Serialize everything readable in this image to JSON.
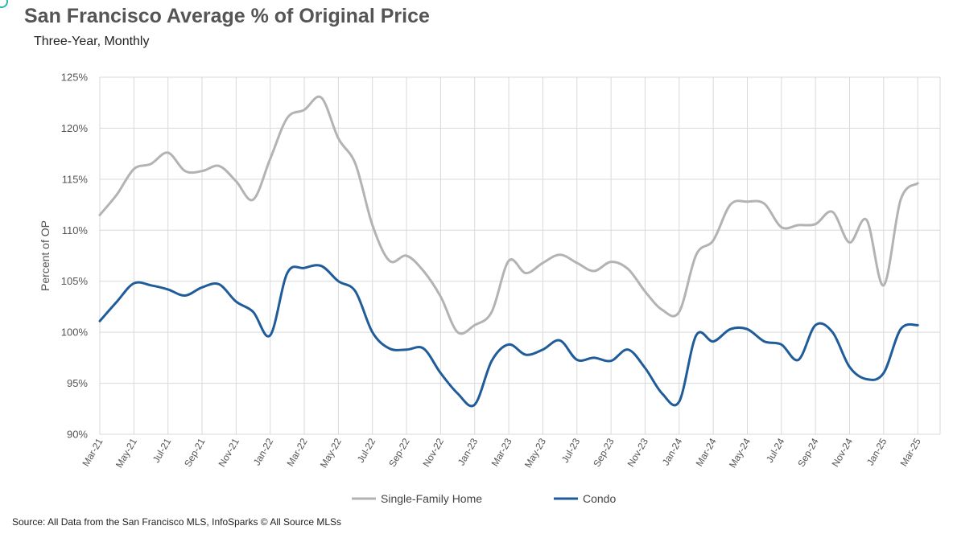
{
  "title": "San Francisco Average % of Original Price",
  "subtitle": "Three-Year, Monthly",
  "source": "Source: All Data from the San Francisco MLS, InfoSparks © All Source MLSs",
  "chart_data": {
    "type": "line",
    "ylabel": "Percent of OP",
    "ylim": [
      90,
      125
    ],
    "yticks": [
      90,
      95,
      100,
      105,
      110,
      115,
      120,
      125
    ],
    "ytick_labels": [
      "90%",
      "95%",
      "100%",
      "105%",
      "110%",
      "115%",
      "120%",
      "125%"
    ],
    "grid": "vertical and horizontal",
    "legend_position": "bottom",
    "x": [
      "Mar-21",
      "Apr-21",
      "May-21",
      "Jun-21",
      "Jul-21",
      "Aug-21",
      "Sep-21",
      "Oct-21",
      "Nov-21",
      "Dec-21",
      "Jan-22",
      "Feb-22",
      "Mar-22",
      "Apr-22",
      "May-22",
      "Jun-22",
      "Jul-22",
      "Aug-22",
      "Sep-22",
      "Oct-22",
      "Nov-22",
      "Dec-22",
      "Jan-23",
      "Feb-23",
      "Mar-23",
      "Apr-23",
      "May-23",
      "Jun-23",
      "Jul-23",
      "Aug-23",
      "Sep-23",
      "Oct-23",
      "Nov-23",
      "Dec-23",
      "Jan-24",
      "Feb-24",
      "Mar-24",
      "Apr-24",
      "May-24",
      "Jun-24",
      "Jul-24",
      "Aug-24",
      "Sep-24",
      "Oct-24",
      "Nov-24",
      "Dec-24",
      "Jan-25",
      "Feb-25",
      "Mar-25"
    ],
    "x_tick_labels": [
      "Mar-21",
      "May-21",
      "Jul-21",
      "Sep-21",
      "Nov-21",
      "Jan-22",
      "Mar-22",
      "May-22",
      "Jul-22",
      "Sep-22",
      "Nov-22",
      "Jan-23",
      "Mar-23",
      "May-23",
      "Jul-23",
      "Sep-23",
      "Nov-23",
      "Jan-24",
      "Mar-24",
      "May-24",
      "Jul-24",
      "Sep-24",
      "Nov-24",
      "Jan-25",
      "Mar-25"
    ],
    "series": [
      {
        "name": "Single-Family Home",
        "color": "#b3b3b3",
        "values": [
          111.5,
          113.5,
          116.0,
          116.5,
          117.6,
          115.8,
          115.8,
          116.3,
          114.8,
          113.0,
          117.0,
          121.0,
          121.8,
          123.0,
          119.0,
          116.5,
          110.5,
          107.0,
          107.5,
          106.0,
          103.5,
          100.0,
          100.7,
          102.0,
          107.0,
          105.8,
          106.8,
          107.6,
          106.8,
          106.0,
          106.9,
          106.2,
          104.0,
          102.2,
          102.0,
          107.6,
          109.0,
          112.5,
          112.8,
          112.6,
          110.3,
          110.5,
          110.6,
          111.8,
          108.8,
          111.0,
          104.6,
          113.0,
          114.6
        ]
      },
      {
        "name": "Condo",
        "color": "#1f5c99",
        "values": [
          101.1,
          103.0,
          104.8,
          104.6,
          104.2,
          103.6,
          104.4,
          104.7,
          103.0,
          102.0,
          99.7,
          105.8,
          106.3,
          106.5,
          105.0,
          104.0,
          100.0,
          98.4,
          98.3,
          98.4,
          96.0,
          94.0,
          92.9,
          97.2,
          98.8,
          97.8,
          98.3,
          99.2,
          97.3,
          97.5,
          97.2,
          98.3,
          96.5,
          94.0,
          93.2,
          99.7,
          99.1,
          100.3,
          100.3,
          99.1,
          98.8,
          97.3,
          100.7,
          100.0,
          96.6,
          95.4,
          96.0,
          100.3,
          100.7
        ]
      }
    ]
  }
}
